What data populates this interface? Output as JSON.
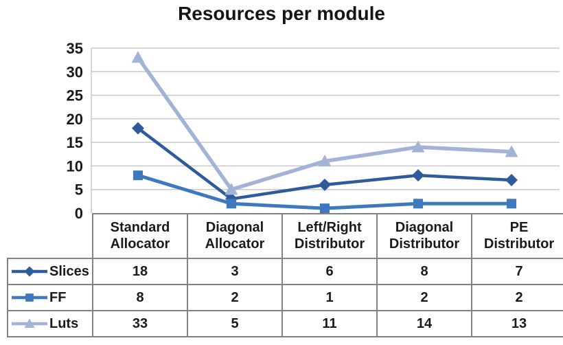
{
  "title": "Resources per module",
  "chart_data": {
    "type": "line",
    "title": "Resources per module",
    "categories": [
      "Standard Allocator",
      "Diagonal Allocator",
      "Left/Right Distributor",
      "Diagonal Distributor",
      "PE Distributor"
    ],
    "series": [
      {
        "name": "Slices",
        "marker": "diamond",
        "color": "#2E5B9B",
        "values": [
          18,
          3,
          6,
          8,
          7
        ]
      },
      {
        "name": "FF",
        "marker": "square",
        "color": "#3E78BD",
        "values": [
          8,
          2,
          1,
          2,
          2
        ]
      },
      {
        "name": "Luts",
        "marker": "triangle",
        "color": "#A3B3D6",
        "values": [
          33,
          5,
          11,
          14,
          13
        ]
      }
    ],
    "ylim": [
      0,
      35
    ],
    "yticks": [
      35,
      30,
      25,
      20,
      15,
      10,
      5,
      0
    ],
    "grid": "horizontal",
    "legend_position": "table-left",
    "xlabel": "",
    "ylabel": ""
  },
  "colors": {
    "slices": "#2E5B9B",
    "ff": "#3E78BD",
    "luts": "#A3B3D6",
    "gridline": "#C8C8C8",
    "table_border": "#828282",
    "text": "#1A1A1A",
    "background": "#FFFFFF"
  }
}
